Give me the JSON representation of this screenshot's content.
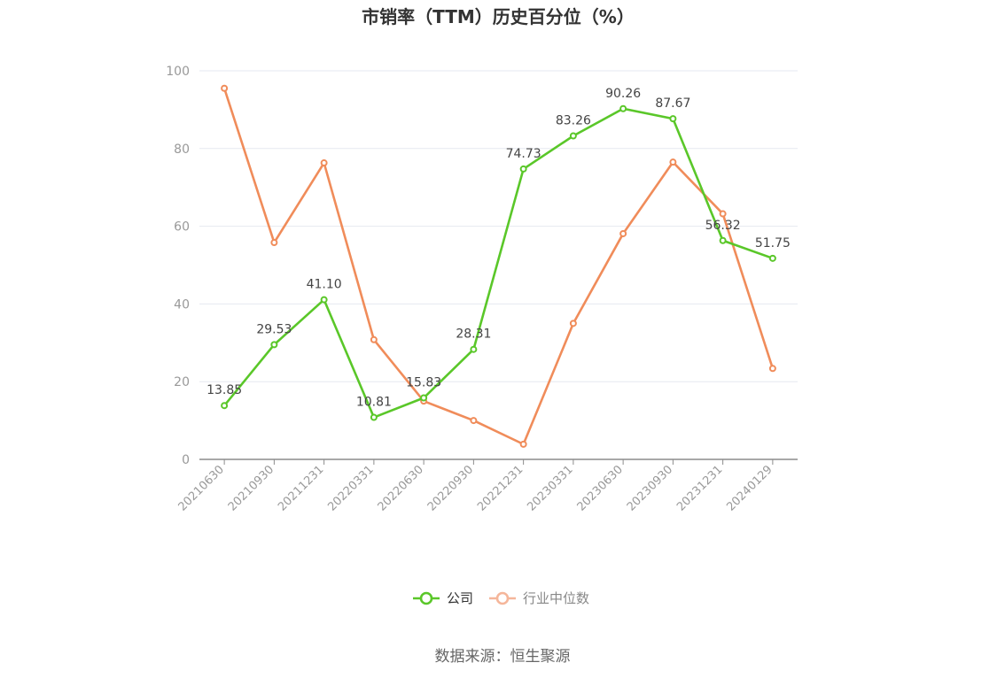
{
  "chart_data": {
    "type": "line",
    "title": "市销率（TTM）历史百分位（%）",
    "categories": [
      "20210630",
      "20210930",
      "20211231",
      "20220331",
      "20220630",
      "20220930",
      "20221231",
      "20230331",
      "20230630",
      "20230930",
      "20231231",
      "20240129"
    ],
    "ylim": [
      0,
      100
    ],
    "yticks": [
      0,
      20,
      40,
      60,
      80,
      100
    ],
    "grid": true,
    "legend_position": "bottom",
    "series": [
      {
        "name": "公司",
        "color": "#5ac729",
        "values": [
          13.85,
          29.53,
          41.1,
          10.81,
          15.83,
          28.31,
          74.73,
          83.26,
          90.26,
          87.67,
          56.32,
          51.75
        ],
        "labels": [
          "13.85",
          "29.53",
          "41.10",
          "10.81",
          "15.83",
          "28.31",
          "74.73",
          "83.26",
          "90.26",
          "87.67",
          "56.32",
          "51.75"
        ]
      },
      {
        "name": "行业中位数",
        "color": "#f08c5a",
        "legend_color": "#f5b69a",
        "values": [
          95.5,
          55.8,
          76.3,
          30.8,
          15.0,
          10.0,
          3.9,
          35.0,
          58.1,
          76.5,
          63.2,
          23.4
        ]
      }
    ]
  },
  "source": "数据来源：恒生聚源"
}
